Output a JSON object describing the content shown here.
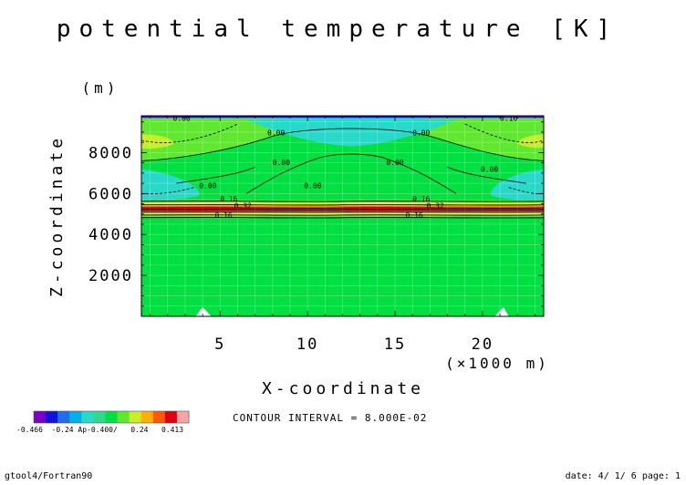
{
  "chart_data": {
    "type": "heatmap",
    "title": "potential temperature [K]",
    "xlabel": "X-coordinate",
    "xunit": "(×1000 m)",
    "ylabel": "Z-coordinate",
    "yunit": "(m)",
    "xlim": [
      0.5,
      23.5
    ],
    "ylim": [
      0,
      9800
    ],
    "x_ticks": [
      5,
      10,
      15,
      20
    ],
    "y_ticks": [
      2000,
      4000,
      6000,
      8000
    ],
    "contour_interval_text": "CONTOUR INTERVAL = 8.000E-02",
    "contour_labels": [
      {
        "text": "0.00",
        "x": 2.8,
        "y": 9550
      },
      {
        "text": "0.16",
        "x": 21.5,
        "y": 9550
      },
      {
        "text": "0.00",
        "x": 8.2,
        "y": 8850
      },
      {
        "text": "0.00",
        "x": 16.5,
        "y": 8850
      },
      {
        "text": "0.00",
        "x": 8.5,
        "y": 7400
      },
      {
        "text": "0.00",
        "x": 15.0,
        "y": 7400
      },
      {
        "text": "0.00",
        "x": 20.4,
        "y": 7050
      },
      {
        "text": "0.00",
        "x": 4.3,
        "y": 6250
      },
      {
        "text": "0.00",
        "x": 10.3,
        "y": 6250
      },
      {
        "text": "0.16",
        "x": 5.5,
        "y": 5620
      },
      {
        "text": "0.16",
        "x": 16.5,
        "y": 5620
      },
      {
        "text": "0.32",
        "x": 6.3,
        "y": 5270
      },
      {
        "text": "0.32",
        "x": 17.3,
        "y": 5270
      },
      {
        "text": "0.16",
        "x": 5.2,
        "y": 4820
      },
      {
        "text": "0.16",
        "x": 16.1,
        "y": 4820
      }
    ],
    "colorbar": {
      "levels": [
        -0.466,
        -0.4,
        -0.32,
        -0.24,
        -0.16,
        -0.08,
        0.0,
        0.08,
        0.16,
        0.24,
        0.32,
        0.413
      ],
      "colors": [
        "#7a00c8",
        "#1010e0",
        "#1f6fe8",
        "#00b0e8",
        "#26d9c9",
        "#30d890",
        "#00e040",
        "#60e830",
        "#c8ee28",
        "#ffb000",
        "#ff5a00",
        "#e00010",
        "#f5a5a5"
      ],
      "tick_text": "-0.466  -0.24 Ap-0.400/   0.24   0.413"
    },
    "grid": true
  },
  "footer": {
    "left": "gtool4/Fortran90",
    "right": "date: 4/ 1/ 6 page: 1"
  }
}
